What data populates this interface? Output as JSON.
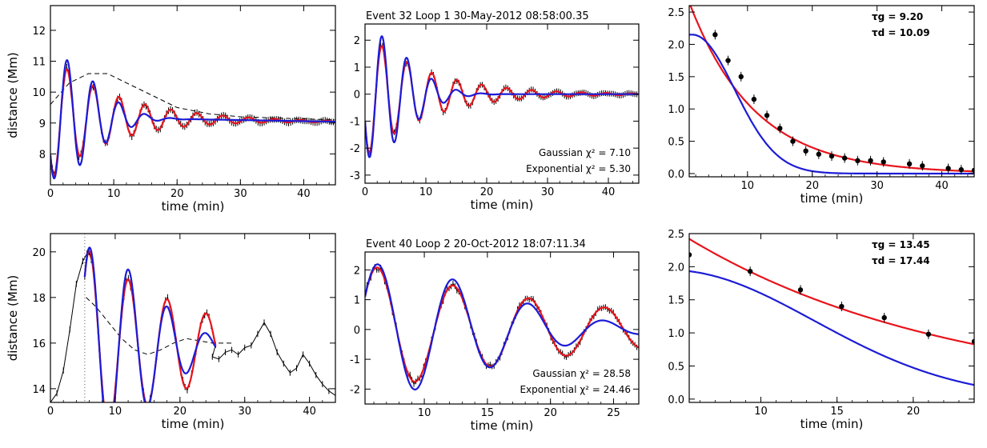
{
  "colors": {
    "data": "#000000",
    "gaussian": "#e8141c",
    "exponential": "#1c1cd6",
    "background_fit": "#000000"
  },
  "chart_data": [
    {
      "id": "p1",
      "type": "line",
      "title": "",
      "xlabel": "time (min)",
      "ylabel": "distance (Mm)",
      "xlim": [
        0,
        45
      ],
      "ylim": [
        7,
        12.8
      ],
      "xticks": [
        0,
        10,
        20,
        30,
        40
      ],
      "yticks": [
        8,
        9,
        10,
        11,
        12
      ],
      "annotations": [],
      "model": {
        "kind": "osc",
        "t0": 0,
        "baseline": 9.2,
        "amp": 2.0,
        "period": 4.1,
        "phase_deg": 218,
        "tau_d": 10.09,
        "tau_g": 9.2,
        "trend": [
          -0.0035,
          0
        ],
        "start": 0,
        "end": 45
      },
      "background": {
        "values": [
          [
            0,
            9.6
          ],
          [
            3,
            10.3
          ],
          [
            6,
            10.6
          ],
          [
            9,
            10.6
          ],
          [
            12,
            10.3
          ],
          [
            16,
            9.9
          ],
          [
            20,
            9.5
          ],
          [
            25,
            9.3
          ],
          [
            30,
            9.2
          ],
          [
            45,
            9.1
          ]
        ]
      }
    },
    {
      "id": "p2",
      "type": "line",
      "title": "Event 32   Loop 1    30-May-2012 08:58:00.35",
      "xlabel": "time (min)",
      "ylabel": "",
      "xlim": [
        0,
        45
      ],
      "ylim": [
        -3.3,
        2.6
      ],
      "xticks": [
        0,
        10,
        20,
        30,
        40
      ],
      "yticks": [
        -3,
        -2,
        -1,
        0,
        1,
        2
      ],
      "annotations": [
        "Gaussian    χ² =  7.10",
        "Exponential  χ² =  5.30"
      ],
      "model": {
        "kind": "osc",
        "t0": 0,
        "baseline": 0,
        "amp": 2.35,
        "period": 4.1,
        "phase_deg": 205,
        "tau_d": 10.09,
        "tau_g": 9.2,
        "trend": [
          0,
          0
        ],
        "start": 0,
        "end": 45
      }
    },
    {
      "id": "p3",
      "type": "scatter",
      "title": "",
      "xlabel": "time (min)",
      "ylabel": "",
      "xlim": [
        1,
        45
      ],
      "ylim": [
        -0.05,
        2.6
      ],
      "xticks": [
        10,
        20,
        30,
        40
      ],
      "yticks": [
        0.0,
        0.5,
        1.0,
        1.5,
        2.0,
        2.5
      ],
      "ytick_labels": [
        "0.0",
        "0.5",
        "1.0",
        "1.5",
        "2.0",
        "2.5"
      ],
      "annotations": [
        "τg =   9.20",
        "τd =  10.09"
      ],
      "points": [
        [
          5,
          2.15
        ],
        [
          7,
          1.75
        ],
        [
          9,
          1.5
        ],
        [
          11,
          1.15
        ],
        [
          13,
          0.9
        ],
        [
          15,
          0.7
        ],
        [
          17,
          0.5
        ],
        [
          19,
          0.35
        ],
        [
          21,
          0.3
        ],
        [
          23,
          0.27
        ],
        [
          25,
          0.24
        ],
        [
          27,
          0.2
        ],
        [
          29,
          0.2
        ],
        [
          31,
          0.18
        ],
        [
          35,
          0.15
        ],
        [
          37,
          0.12
        ],
        [
          41,
          0.08
        ],
        [
          43,
          0.06
        ],
        [
          45,
          0.05
        ]
      ],
      "fit_gaussian": {
        "kind": "gauss",
        "a": 2.15,
        "t0": 1.5,
        "tau": 9.2
      },
      "fit_exponential": {
        "kind": "exp",
        "a": 2.65,
        "t0": 1,
        "tau": 10.09
      }
    },
    {
      "id": "p4",
      "type": "line",
      "title": "",
      "xlabel": "time (min)",
      "ylabel": "distance (Mm)",
      "xlim": [
        0,
        44
      ],
      "ylim": [
        13.4,
        20.8
      ],
      "xticks": [
        0,
        10,
        20,
        30,
        40
      ],
      "yticks": [
        14,
        16,
        18,
        20
      ],
      "annotations": [],
      "vline": 5.3,
      "model": {
        "kind": "osc",
        "t0": 5.3,
        "baseline": 15.8,
        "amp": 4.4,
        "period": 6.0,
        "phase_deg": 45,
        "tau_d": 17.44,
        "tau_g": 13.45,
        "trend": [
          0,
          0
        ],
        "start": 5.3,
        "end": 25.5
      },
      "pre_points": [
        [
          0,
          13.4
        ],
        [
          1,
          13.8
        ],
        [
          2,
          14.8
        ],
        [
          3,
          16.6
        ],
        [
          4,
          18.6
        ],
        [
          5,
          19.6
        ],
        [
          5.8,
          20.0
        ]
      ],
      "tail_points": [
        [
          25,
          15.4
        ],
        [
          26,
          15.3
        ],
        [
          27,
          15.6
        ],
        [
          28,
          15.7
        ],
        [
          29,
          15.5
        ],
        [
          30,
          15.8
        ],
        [
          31,
          15.9
        ],
        [
          32,
          16.4
        ],
        [
          33,
          16.9
        ],
        [
          34,
          16.4
        ],
        [
          35,
          15.6
        ],
        [
          36,
          15.1
        ],
        [
          37,
          14.7
        ],
        [
          38,
          14.9
        ],
        [
          39,
          15.5
        ],
        [
          40,
          15.1
        ],
        [
          41,
          14.6
        ],
        [
          42,
          14.2
        ],
        [
          43,
          13.9
        ],
        [
          44,
          13.7
        ]
      ],
      "background": {
        "values": [
          [
            5.5,
            18.0
          ],
          [
            7,
            17.6
          ],
          [
            9,
            16.9
          ],
          [
            11,
            16.2
          ],
          [
            13,
            15.7
          ],
          [
            15,
            15.5
          ],
          [
            17,
            15.7
          ],
          [
            19,
            16.0
          ],
          [
            21,
            16.2
          ],
          [
            23,
            16.1
          ],
          [
            25,
            16.0
          ],
          [
            28,
            16.0
          ]
        ]
      }
    },
    {
      "id": "p5",
      "type": "line",
      "title": "Event 40   Loop 2    20-Oct-2012 18:07:11.34",
      "xlabel": "time (min)",
      "ylabel": "",
      "xlim": [
        5.3,
        27
      ],
      "ylim": [
        -2.5,
        2.6
      ],
      "xticks": [
        10,
        15,
        20,
        25
      ],
      "yticks": [
        -2,
        -1,
        0,
        1,
        2
      ],
      "annotations": [
        "Gaussian     χ² = 28.58",
        "Exponential  χ² = 24.46"
      ],
      "model": {
        "kind": "osc",
        "t0": 5.3,
        "baseline": 0,
        "amp": 2.2,
        "period": 6.0,
        "phase_deg": 30,
        "tau_d": 17.44,
        "tau_g": 13.45,
        "trend": [
          0,
          0
        ],
        "start": 5.3,
        "end": 27
      }
    },
    {
      "id": "p6",
      "type": "scatter",
      "title": "",
      "xlabel": "time (min)",
      "ylabel": "",
      "xlim": [
        5.3,
        24
      ],
      "ylim": [
        -0.05,
        2.5
      ],
      "xticks": [
        10,
        15,
        20
      ],
      "yticks": [
        0.0,
        0.5,
        1.0,
        1.5,
        2.0,
        2.5
      ],
      "ytick_labels": [
        "0.0",
        "0.5",
        "1.0",
        "1.5",
        "2.0",
        "2.5"
      ],
      "annotations": [
        "τg =  13.45",
        "τd =  17.44"
      ],
      "points": [
        [
          5.3,
          2.18
        ],
        [
          9.3,
          1.93
        ],
        [
          12.6,
          1.65
        ],
        [
          15.3,
          1.4
        ],
        [
          18.1,
          1.23
        ],
        [
          21.0,
          0.98
        ],
        [
          24.0,
          0.87
        ]
      ],
      "fit_gaussian": {
        "kind": "gauss",
        "a": 1.95,
        "t0": 4.0,
        "tau": 13.45
      },
      "fit_exponential": {
        "kind": "exp",
        "a": 2.42,
        "t0": 5.3,
        "tau": 17.44
      }
    }
  ]
}
